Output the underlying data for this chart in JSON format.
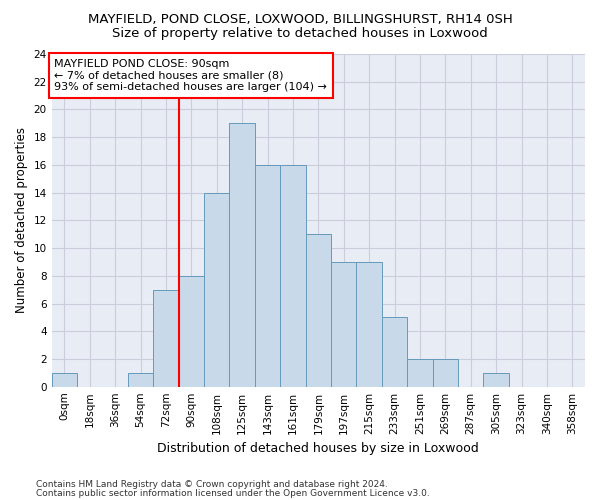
{
  "title1": "MAYFIELD, POND CLOSE, LOXWOOD, BILLINGSHURST, RH14 0SH",
  "title2": "Size of property relative to detached houses in Loxwood",
  "xlabel": "Distribution of detached houses by size in Loxwood",
  "ylabel": "Number of detached properties",
  "bar_labels": [
    "0sqm",
    "18sqm",
    "36sqm",
    "54sqm",
    "72sqm",
    "90sqm",
    "108sqm",
    "125sqm",
    "143sqm",
    "161sqm",
    "179sqm",
    "197sqm",
    "215sqm",
    "233sqm",
    "251sqm",
    "269sqm",
    "287sqm",
    "305sqm",
    "323sqm",
    "340sqm",
    "358sqm"
  ],
  "bar_values": [
    1,
    0,
    0,
    1,
    7,
    8,
    14,
    19,
    16,
    16,
    11,
    9,
    9,
    5,
    2,
    2,
    0,
    1,
    0,
    0,
    0
  ],
  "bar_color": "#c8d9ea",
  "bar_edgecolor": "#6699bb",
  "annotation_text": "MAYFIELD POND CLOSE: 90sqm\n← 7% of detached houses are smaller (8)\n93% of semi-detached houses are larger (104) →",
  "annotation_box_color": "white",
  "annotation_box_edgecolor": "red",
  "vline_bar_idx": 5,
  "ylim": [
    0,
    24
  ],
  "yticks": [
    0,
    2,
    4,
    6,
    8,
    10,
    12,
    14,
    16,
    18,
    20,
    22,
    24
  ],
  "grid_color": "#ccccdd",
  "background_color": "#e8edf5",
  "footer1": "Contains HM Land Registry data © Crown copyright and database right 2024.",
  "footer2": "Contains public sector information licensed under the Open Government Licence v3.0.",
  "title1_fontsize": 9.5,
  "title2_fontsize": 9.5,
  "xlabel_fontsize": 9,
  "ylabel_fontsize": 8.5,
  "tick_fontsize": 7.5,
  "annotation_fontsize": 8,
  "footer_fontsize": 6.5
}
